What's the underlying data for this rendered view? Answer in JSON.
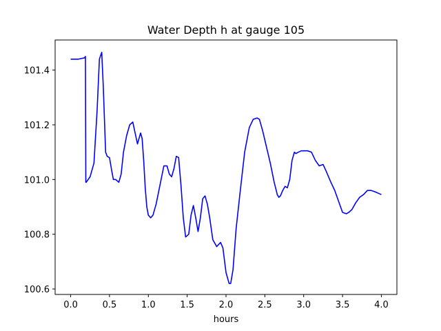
{
  "chart_data": {
    "type": "line",
    "title": "Water Depth h at gauge 105",
    "xlabel": "hours",
    "ylabel": "",
    "xlim": [
      -0.2,
      4.2
    ],
    "ylim": [
      100.58,
      101.51
    ],
    "xticks": [
      0.0,
      0.5,
      1.0,
      1.5,
      2.0,
      2.5,
      3.0,
      3.5,
      4.0
    ],
    "xtick_labels": [
      "0.0",
      "0.5",
      "1.0",
      "1.5",
      "2.0",
      "2.5",
      "3.0",
      "3.5",
      "4.0"
    ],
    "yticks": [
      100.6,
      100.8,
      101.0,
      101.2,
      101.4
    ],
    "ytick_labels": [
      "100.6",
      "100.8",
      "101.0",
      "101.2",
      "101.4"
    ],
    "grid": false,
    "series": [
      {
        "color": "#0000ff",
        "x": [
          0.0,
          0.1,
          0.18,
          0.19,
          0.195,
          0.2,
          0.25,
          0.3,
          0.34,
          0.37,
          0.4,
          0.42,
          0.45,
          0.47,
          0.5,
          0.53,
          0.55,
          0.58,
          0.62,
          0.65,
          0.68,
          0.72,
          0.76,
          0.8,
          0.83,
          0.86,
          0.88,
          0.9,
          0.92,
          0.94,
          0.96,
          0.98,
          1.0,
          1.03,
          1.06,
          1.1,
          1.15,
          1.2,
          1.24,
          1.27,
          1.3,
          1.33,
          1.36,
          1.39,
          1.42,
          1.45,
          1.48,
          1.52,
          1.55,
          1.58,
          1.61,
          1.64,
          1.67,
          1.7,
          1.73,
          1.76,
          1.79,
          1.83,
          1.88,
          1.93,
          1.96,
          2.0,
          2.04,
          2.06,
          2.09,
          2.13,
          2.18,
          2.24,
          2.3,
          2.35,
          2.4,
          2.43,
          2.47,
          2.52,
          2.57,
          2.62,
          2.66,
          2.68,
          2.7,
          2.73,
          2.76,
          2.79,
          2.82,
          2.85,
          2.88,
          2.9,
          2.93,
          2.97,
          3.0,
          3.05,
          3.1,
          3.15,
          3.2,
          3.25,
          3.29,
          3.32,
          3.35,
          3.4,
          3.45,
          3.5,
          3.55,
          3.58,
          3.62,
          3.67,
          3.72,
          3.77,
          3.82,
          3.87,
          3.92,
          3.96,
          4.0
        ],
        "y": [
          101.44,
          101.44,
          101.445,
          101.45,
          100.99,
          100.99,
          101.01,
          101.06,
          101.25,
          101.44,
          101.465,
          101.34,
          101.1,
          101.085,
          101.08,
          101.03,
          101.0,
          101.0,
          100.99,
          101.02,
          101.1,
          101.16,
          101.2,
          101.21,
          101.17,
          101.13,
          101.15,
          101.17,
          101.15,
          101.07,
          100.97,
          100.9,
          100.87,
          100.86,
          100.87,
          100.91,
          100.98,
          101.05,
          101.05,
          101.02,
          101.01,
          101.04,
          101.085,
          101.08,
          100.98,
          100.86,
          100.79,
          100.8,
          100.87,
          100.905,
          100.86,
          100.81,
          100.86,
          100.93,
          100.94,
          100.91,
          100.86,
          100.78,
          100.755,
          100.77,
          100.75,
          100.66,
          100.62,
          100.62,
          100.67,
          100.82,
          100.95,
          101.1,
          101.19,
          101.22,
          101.225,
          101.22,
          101.18,
          101.12,
          101.06,
          100.99,
          100.945,
          100.935,
          100.94,
          100.96,
          100.975,
          100.97,
          101.0,
          101.07,
          101.1,
          101.095,
          101.1,
          101.105,
          101.105,
          101.105,
          101.1,
          101.07,
          101.05,
          101.055,
          101.03,
          101.01,
          100.99,
          100.96,
          100.92,
          100.88,
          100.875,
          100.88,
          100.89,
          100.915,
          100.935,
          100.945,
          100.96,
          100.96,
          100.955,
          100.95,
          100.945
        ]
      }
    ]
  }
}
